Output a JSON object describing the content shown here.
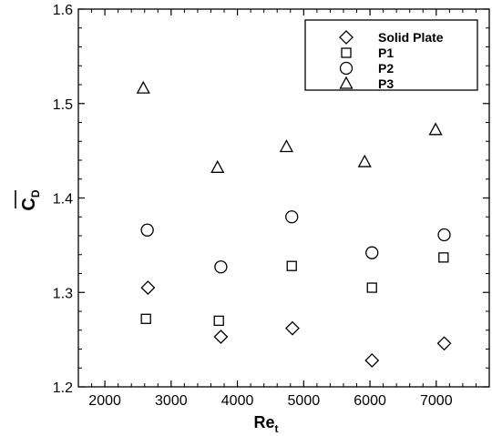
{
  "chart_data": {
    "type": "scatter",
    "title": "",
    "xlabel": {
      "main": "Re",
      "sub": "t"
    },
    "ylabel": {
      "main": "C",
      "sub": "D",
      "overbar": true
    },
    "xlim": [
      1600,
      7800
    ],
    "ylim": [
      1.2,
      1.6
    ],
    "xticks": [
      2000,
      3000,
      4000,
      5000,
      6000,
      7000
    ],
    "yticks": [
      1.2,
      1.3,
      1.4,
      1.5,
      1.6
    ],
    "xtick_labels": [
      "2000",
      "3000",
      "4000",
      "5000",
      "6000",
      "7000"
    ],
    "ytick_labels": [
      "1.2",
      "1.3",
      "1.4",
      "1.5",
      "1.6"
    ],
    "grid": false,
    "legend_position": "top-right",
    "series": [
      {
        "name": "Solid Plate",
        "marker": "diamond",
        "x": [
          2650,
          3750,
          4830,
          6030,
          7120
        ],
        "y": [
          1.305,
          1.253,
          1.262,
          1.228,
          1.246
        ]
      },
      {
        "name": "P1",
        "marker": "square",
        "x": [
          2620,
          3720,
          4820,
          6030,
          7110
        ],
        "y": [
          1.272,
          1.27,
          1.328,
          1.305,
          1.337
        ]
      },
      {
        "name": "P2",
        "marker": "circle",
        "x": [
          2640,
          3750,
          4820,
          6030,
          7120
        ],
        "y": [
          1.366,
          1.327,
          1.38,
          1.342,
          1.361
        ]
      },
      {
        "name": "P3",
        "marker": "triangle",
        "x": [
          2580,
          3700,
          4740,
          5920,
          6990
        ],
        "y": [
          1.516,
          1.432,
          1.454,
          1.438,
          1.472
        ]
      }
    ]
  }
}
